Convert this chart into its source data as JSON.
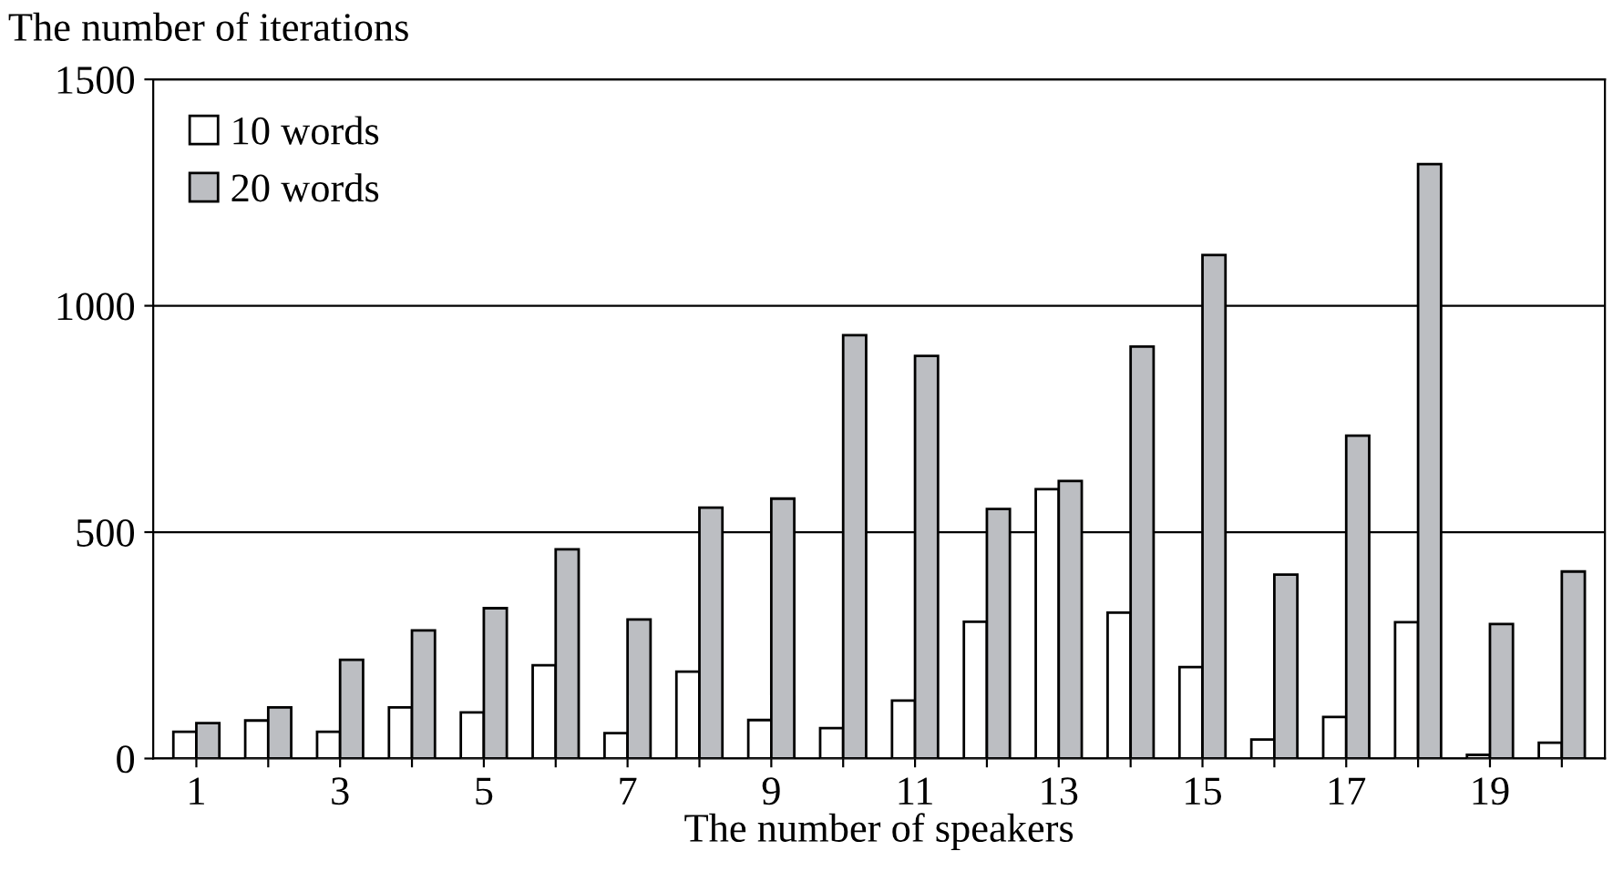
{
  "chart_data": {
    "type": "bar",
    "ylabel": "The number of iterations",
    "xlabel": "The number of speakers",
    "categories": [
      "1",
      null,
      "3",
      null,
      "5",
      null,
      "7",
      null,
      "9",
      null,
      "11",
      null,
      "13",
      null,
      "15",
      null,
      "17",
      null,
      "19",
      null
    ],
    "series": [
      {
        "name": "10 words",
        "color": "#ffffff",
        "values": [
          59,
          84,
          59,
          113,
          102,
          206,
          56,
          192,
          85,
          67,
          128,
          302,
          595,
          322,
          202,
          42,
          92,
          301,
          8,
          35
        ]
      },
      {
        "name": "20 words",
        "color": "#bcbec2",
        "values": [
          78,
          113,
          218,
          283,
          332,
          462,
          307,
          554,
          574,
          935,
          889,
          551,
          613,
          910,
          1112,
          406,
          713,
          1313,
          297,
          413
        ]
      }
    ],
    "ylim": [
      0,
      1500
    ],
    "yticks": [
      0,
      500,
      1000,
      1500
    ],
    "grid": "y",
    "legend": "top left"
  }
}
